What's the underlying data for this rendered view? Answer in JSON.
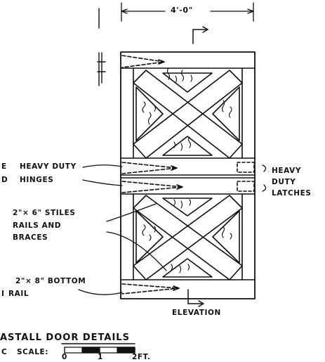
{
  "drawing": {
    "dimension_width": "4'-0\"",
    "label_hinges_line1": "HEAVY DUTY",
    "label_hinges_line2": "HINGES",
    "label_latches_line1": "HEAVY",
    "label_latches_line2": "DUTY",
    "label_latches_line3": "LATCHES",
    "label_stiles_line1": "2\"× 6\" STILES",
    "label_stiles_line2": "RAILS AND",
    "label_stiles_line3": "BRACES",
    "label_bottom_line1": "2\"× 8\" BOTTOM",
    "label_bottom_line2": "RAIL",
    "label_elevation": "ELEVATION",
    "title": "ASTALL DOOR DETAILS",
    "scale_label": "SCALE:",
    "scale_ticks": [
      "0",
      "1",
      "2FT."
    ],
    "fragment_hinges_a": "E",
    "fragment_hinges_b": "D",
    "fragment_bottom": "I",
    "fragment_scale": "C"
  },
  "colors": {
    "ink": "#111111",
    "paper": "#ffffff"
  }
}
